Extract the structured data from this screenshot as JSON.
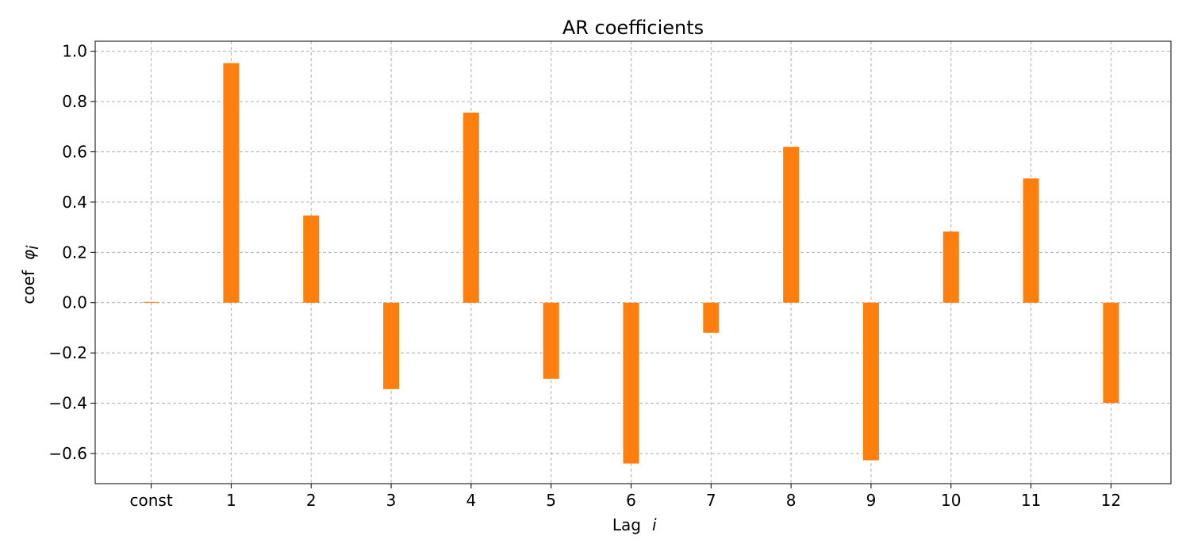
{
  "chart_data": {
    "type": "bar",
    "title": "AR coefficients",
    "xlabel": "Lag",
    "xlabel_symbol": "i",
    "ylabel": "coef",
    "ylabel_symbol": "φ",
    "ylabel_subscript": "i",
    "categories": [
      "const",
      "1",
      "2",
      "3",
      "4",
      "5",
      "6",
      "7",
      "8",
      "9",
      "10",
      "11",
      "12"
    ],
    "values": [
      0.003,
      0.953,
      0.347,
      -0.344,
      0.756,
      -0.303,
      -0.64,
      -0.12,
      0.62,
      -0.627,
      0.283,
      0.494,
      -0.399
    ],
    "yticks": [
      "−0.6",
      "−0.4",
      "−0.2",
      "0.0",
      "0.2",
      "0.4",
      "0.6",
      "0.8",
      "1.0"
    ],
    "ytick_values": [
      -0.6,
      -0.4,
      -0.2,
      0.0,
      0.2,
      0.4,
      0.6,
      0.8,
      1.0
    ],
    "ylim": [
      -0.72,
      1.04
    ],
    "grid": true,
    "bar_color": "#ff7f0e"
  }
}
